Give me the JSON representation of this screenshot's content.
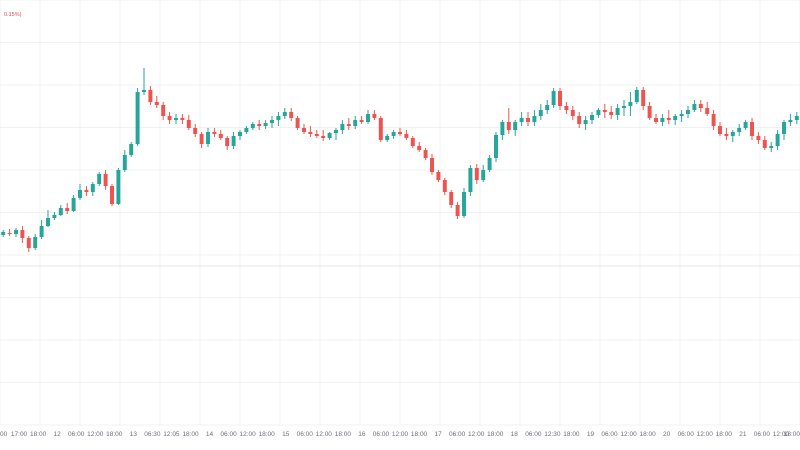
{
  "chart_data": {
    "type": "candlestick",
    "legend_change": "0.15%)",
    "colors": {
      "up": "#26a69a",
      "down": "#ef5350",
      "wick_up": "#26a69a",
      "wick_down": "#ef5350",
      "grid": "#f0f1f3",
      "ref_line": "#e6e7ea",
      "axis_text": "#6b6f78"
    },
    "ylim": [
      0,
      450
    ],
    "reference_level": 266,
    "x_tick_labels": [
      "00",
      "17:00",
      "18:00",
      "12",
      "06:00",
      "12:00",
      "18:00",
      "13",
      "06:30",
      "12:05",
      "18:00",
      "14",
      "06:00",
      "12:00",
      "18:00",
      "15",
      "06:00",
      "12:00",
      "18:00",
      "16",
      "06:00",
      "12:00",
      "18:00",
      "17",
      "06:00",
      "12:00",
      "18:00",
      "18",
      "06:00",
      "12:30",
      "18:00",
      "19",
      "06:00",
      "12:00",
      "18:00",
      "20",
      "06:00",
      "12:00",
      "18:00",
      "21",
      "06:00",
      "12:00",
      "18:00"
    ],
    "candles": [
      [
        65,
        63,
        70,
        68
      ],
      [
        67,
        64,
        71,
        66
      ],
      [
        66,
        63,
        72,
        70
      ],
      [
        70,
        57,
        74,
        62
      ],
      [
        62,
        48,
        64,
        52
      ],
      [
        52,
        50,
        66,
        63
      ],
      [
        63,
        61,
        80,
        74
      ],
      [
        74,
        73,
        90,
        82
      ],
      [
        82,
        80,
        88,
        85
      ],
      [
        85,
        84,
        95,
        92
      ],
      [
        92,
        86,
        97,
        89
      ],
      [
        89,
        88,
        105,
        102
      ],
      [
        102,
        100,
        116,
        110
      ],
      [
        110,
        104,
        114,
        108
      ],
      [
        108,
        104,
        118,
        116
      ],
      [
        116,
        114,
        128,
        126
      ],
      [
        126,
        110,
        130,
        114
      ],
      [
        114,
        94,
        116,
        96
      ],
      [
        96,
        95,
        132,
        130
      ],
      [
        130,
        128,
        150,
        145
      ],
      [
        145,
        143,
        158,
        156
      ],
      [
        156,
        154,
        212,
        208
      ],
      [
        208,
        205,
        232,
        210
      ],
      [
        210,
        195,
        214,
        198
      ],
      [
        198,
        192,
        204,
        195
      ],
      [
        195,
        180,
        198,
        184
      ],
      [
        184,
        176,
        188,
        180
      ],
      [
        180,
        176,
        186,
        182
      ],
      [
        182,
        176,
        186,
        180
      ],
      [
        180,
        170,
        185,
        172
      ],
      [
        172,
        163,
        176,
        166
      ],
      [
        166,
        152,
        168,
        156
      ],
      [
        156,
        153,
        172,
        168
      ],
      [
        168,
        163,
        172,
        166
      ],
      [
        166,
        160,
        170,
        162
      ],
      [
        162,
        150,
        164,
        154
      ],
      [
        154,
        151,
        168,
        164
      ],
      [
        164,
        160,
        170,
        168
      ],
      [
        168,
        166,
        174,
        172
      ],
      [
        172,
        170,
        178,
        176
      ],
      [
        176,
        170,
        180,
        174
      ],
      [
        174,
        171,
        180,
        177
      ],
      [
        177,
        172,
        184,
        180
      ],
      [
        180,
        174,
        188,
        184
      ],
      [
        184,
        181,
        192,
        188
      ],
      [
        188,
        179,
        192,
        182
      ],
      [
        182,
        170,
        184,
        172
      ],
      [
        172,
        166,
        176,
        168
      ],
      [
        168,
        163,
        174,
        166
      ],
      [
        166,
        162,
        170,
        164
      ],
      [
        164,
        159,
        170,
        162
      ],
      [
        162,
        160,
        168,
        167
      ],
      [
        167,
        160,
        172,
        170
      ],
      [
        170,
        166,
        180,
        176
      ],
      [
        176,
        170,
        182,
        174
      ],
      [
        174,
        171,
        184,
        180
      ],
      [
        180,
        176,
        184,
        178
      ],
      [
        178,
        176,
        190,
        186
      ],
      [
        186,
        180,
        190,
        182
      ],
      [
        182,
        158,
        184,
        160
      ],
      [
        160,
        158,
        166,
        164
      ],
      [
        164,
        161,
        170,
        168
      ],
      [
        168,
        164,
        172,
        166
      ],
      [
        166,
        160,
        170,
        162
      ],
      [
        162,
        152,
        164,
        154
      ],
      [
        154,
        148,
        158,
        150
      ],
      [
        150,
        140,
        152,
        142
      ],
      [
        142,
        125,
        146,
        128
      ],
      [
        128,
        118,
        130,
        120
      ],
      [
        120,
        105,
        122,
        108
      ],
      [
        108,
        92,
        110,
        95
      ],
      [
        95,
        81,
        98,
        84
      ],
      [
        84,
        82,
        112,
        108
      ],
      [
        108,
        104,
        135,
        132
      ],
      [
        132,
        116,
        136,
        120
      ],
      [
        120,
        118,
        135,
        130
      ],
      [
        130,
        128,
        145,
        142
      ],
      [
        142,
        138,
        168,
        165
      ],
      [
        165,
        160,
        180,
        178
      ],
      [
        178,
        166,
        192,
        170
      ],
      [
        170,
        164,
        180,
        178
      ],
      [
        178,
        174,
        188,
        182
      ],
      [
        182,
        174,
        188,
        178
      ],
      [
        178,
        174,
        190,
        184
      ],
      [
        184,
        180,
        196,
        190
      ],
      [
        190,
        186,
        200,
        195
      ],
      [
        195,
        192,
        212,
        209
      ],
      [
        209,
        190,
        212,
        194
      ],
      [
        194,
        186,
        198,
        190
      ],
      [
        190,
        180,
        194,
        184
      ],
      [
        184,
        172,
        188,
        176
      ],
      [
        176,
        170,
        184,
        180
      ],
      [
        180,
        176,
        188,
        185
      ],
      [
        185,
        182,
        192,
        190
      ],
      [
        190,
        182,
        196,
        188
      ],
      [
        188,
        181,
        194,
        185
      ],
      [
        185,
        180,
        196,
        192
      ],
      [
        192,
        184,
        200,
        194
      ],
      [
        194,
        184,
        208,
        198
      ],
      [
        198,
        196,
        213,
        210
      ],
      [
        210,
        190,
        213,
        194
      ],
      [
        194,
        180,
        198,
        182
      ],
      [
        182,
        176,
        186,
        178
      ],
      [
        178,
        174,
        186,
        182
      ],
      [
        182,
        176,
        190,
        180
      ],
      [
        180,
        175,
        186,
        184
      ],
      [
        184,
        178,
        190,
        186
      ],
      [
        186,
        182,
        194,
        190
      ],
      [
        190,
        188,
        200,
        196
      ],
      [
        196,
        188,
        200,
        192
      ],
      [
        192,
        184,
        198,
        186
      ],
      [
        186,
        170,
        190,
        174
      ],
      [
        174,
        164,
        178,
        166
      ],
      [
        166,
        160,
        172,
        164
      ],
      [
        164,
        158,
        170,
        168
      ],
      [
        168,
        164,
        176,
        172
      ],
      [
        172,
        170,
        180,
        178
      ],
      [
        178,
        160,
        182,
        164
      ],
      [
        164,
        156,
        168,
        160
      ],
      [
        160,
        150,
        164,
        152
      ],
      [
        152,
        148,
        158,
        154
      ],
      [
        154,
        150,
        170,
        166
      ],
      [
        166,
        160,
        180,
        178
      ],
      [
        178,
        174,
        186,
        180
      ],
      [
        180,
        176,
        188,
        184
      ]
    ]
  }
}
